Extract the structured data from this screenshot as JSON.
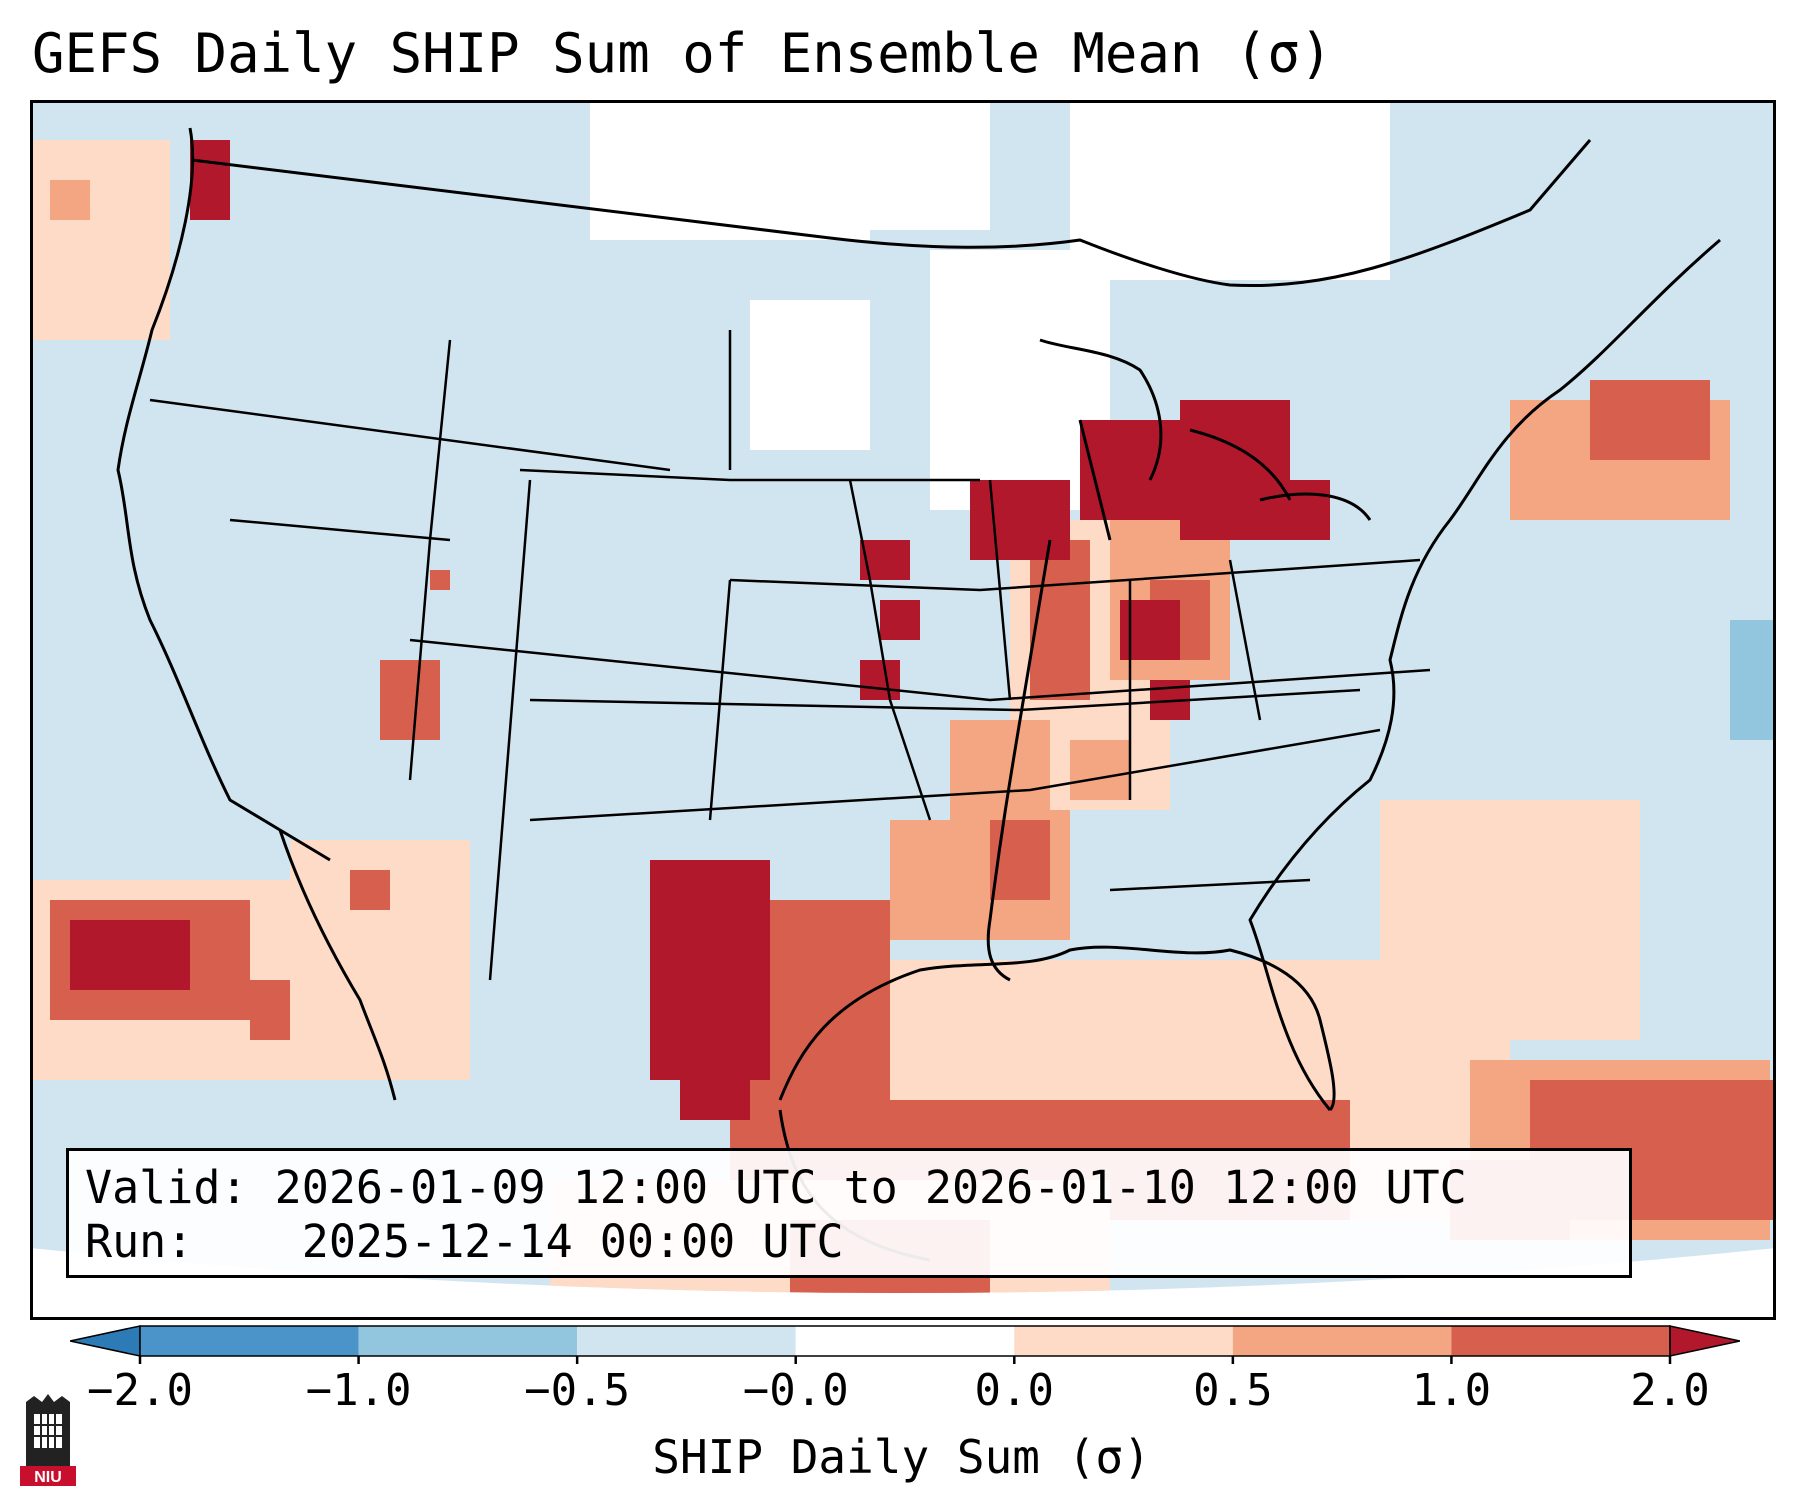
{
  "title": "GEFS Daily SHIP Sum of Ensemble Mean (σ)",
  "info": {
    "valid_label": "Valid:",
    "valid_value": "2026-01-09 12:00 UTC to 2026-01-10 12:00 UTC",
    "run_label": "Run:",
    "run_value": "2025-12-14 00:00 UTC"
  },
  "colorbar": {
    "label": "SHIP Daily Sum (σ)",
    "ticks": [
      "−2.0",
      "−1.0",
      "−0.5",
      "−0.0",
      "0.0",
      "0.5",
      "1.0",
      "2.0"
    ],
    "bins": [
      {
        "range": "< -2.0",
        "color": "#2c7bb6"
      },
      {
        "range": "-2.0 to -1.0",
        "color": "#4a94c9"
      },
      {
        "range": "-1.0 to -0.5",
        "color": "#92c5de"
      },
      {
        "range": "-0.5 to -0.0",
        "color": "#d1e5f0"
      },
      {
        "range": "-0.0 to 0.0",
        "color": "#ffffff"
      },
      {
        "range": "0.0 to 0.5",
        "color": "#fddbc7"
      },
      {
        "range": "0.5 to 1.0",
        "color": "#f4a582"
      },
      {
        "range": "1.0 to 2.0",
        "color": "#d6604d"
      },
      {
        "range": "> 2.0",
        "color": "#b2182b"
      }
    ]
  },
  "colors": {
    "neg_small": "#d1e5f0",
    "neg_mid": "#92c5de",
    "pos_small": "#fddbc7",
    "pos_mid": "#f4a582",
    "pos_high": "#d6604d",
    "pos_max": "#b2182b",
    "zero": "#ffffff"
  },
  "logo": {
    "text": "NIU"
  }
}
